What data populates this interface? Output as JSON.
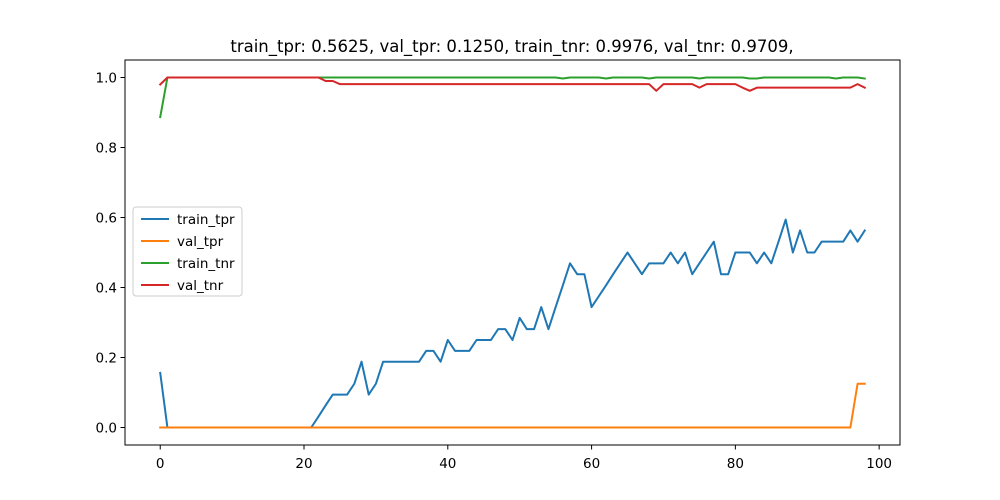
{
  "chart_data": {
    "type": "line",
    "title": "train_tpr: 0.5625, val_tpr: 0.1250, train_tnr: 0.9976, val_tnr: 0.9709,",
    "xlabel": "",
    "ylabel": "",
    "xlim": [
      -4.9,
      102.9
    ],
    "ylim": [
      -0.05,
      1.05
    ],
    "xticks": [
      0,
      20,
      40,
      60,
      80,
      100
    ],
    "yticks": [
      0.0,
      0.2,
      0.4,
      0.6,
      0.8,
      1.0
    ],
    "xtick_labels": [
      "0",
      "20",
      "40",
      "60",
      "80",
      "100"
    ],
    "ytick_labels": [
      "0.0",
      "0.2",
      "0.4",
      "0.6",
      "0.8",
      "1.0"
    ],
    "grid": false,
    "legend_position": "center-left",
    "series": [
      {
        "name": "train_tpr",
        "color": "#1f77b4",
        "x": [
          0,
          1,
          21,
          22,
          23,
          24,
          25,
          26,
          27,
          28,
          29,
          30,
          31,
          32,
          33,
          34,
          35,
          36,
          37,
          38,
          39,
          40,
          41,
          42,
          43,
          44,
          45,
          46,
          47,
          48,
          49,
          50,
          51,
          52,
          53,
          54,
          55,
          56,
          57,
          58,
          59,
          60,
          61,
          62,
          63,
          64,
          65,
          66,
          67,
          68,
          69,
          70,
          71,
          72,
          73,
          74,
          75,
          76,
          77,
          78,
          79,
          80,
          81,
          82,
          83,
          84,
          85,
          86,
          87,
          88,
          89,
          90,
          91,
          92,
          93,
          94,
          95,
          96,
          97,
          98
        ],
        "y": [
          0.156,
          0,
          0,
          0.031,
          0.063,
          0.094,
          0.094,
          0.094,
          0.125,
          0.188,
          0.094,
          0.125,
          0.188,
          0.188,
          0.188,
          0.188,
          0.188,
          0.188,
          0.219,
          0.219,
          0.188,
          0.25,
          0.219,
          0.219,
          0.219,
          0.25,
          0.25,
          0.25,
          0.281,
          0.281,
          0.25,
          0.313,
          0.281,
          0.281,
          0.344,
          0.281,
          0.344,
          0.406,
          0.469,
          0.438,
          0.438,
          0.344,
          0.375,
          0.406,
          0.438,
          0.469,
          0.5,
          0.469,
          0.438,
          0.469,
          0.469,
          0.469,
          0.5,
          0.469,
          0.5,
          0.438,
          0.469,
          0.5,
          0.531,
          0.438,
          0.438,
          0.5,
          0.5,
          0.5,
          0.469,
          0.5,
          0.469,
          0.531,
          0.594,
          0.5,
          0.563,
          0.5,
          0.5,
          0.531,
          0.531,
          0.531,
          0.531,
          0.563,
          0.531,
          0.563
        ]
      },
      {
        "name": "val_tpr",
        "color": "#ff7f0e",
        "x": [
          0,
          96,
          97,
          98
        ],
        "y": [
          0,
          0,
          0.125,
          0.125
        ]
      },
      {
        "name": "train_tnr",
        "color": "#2ca02c",
        "x": [
          0,
          1,
          55,
          56,
          57,
          61,
          62,
          63,
          67,
          68,
          69,
          74,
          75,
          76,
          81,
          82,
          83,
          84,
          93,
          94,
          95,
          97,
          98
        ],
        "y": [
          0.887,
          1.0,
          1.0,
          0.997,
          1.0,
          1.0,
          0.997,
          1.0,
          1.0,
          0.997,
          1.0,
          1.0,
          0.997,
          1.0,
          1.0,
          0.997,
          0.997,
          1.0,
          1.0,
          0.997,
          1.0,
          1.0,
          0.997
        ]
      },
      {
        "name": "val_tnr",
        "color": "#d62728",
        "x": [
          0,
          1,
          22,
          23,
          24,
          25,
          68,
          69,
          70,
          74,
          75,
          76,
          80,
          81,
          82,
          83,
          96,
          97,
          98
        ],
        "y": [
          0.98,
          1.0,
          1.0,
          0.99,
          0.99,
          0.981,
          0.981,
          0.962,
          0.981,
          0.981,
          0.971,
          0.981,
          0.981,
          0.971,
          0.962,
          0.971,
          0.971,
          0.981,
          0.971
        ]
      }
    ]
  }
}
